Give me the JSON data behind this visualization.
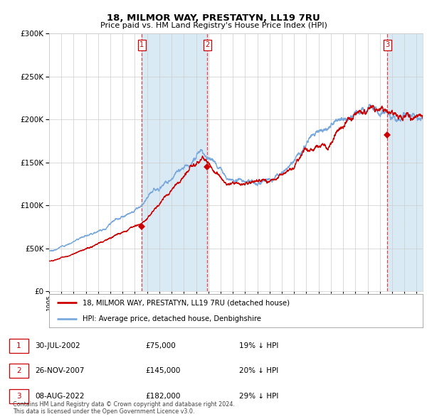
{
  "title": "18, MILMOR WAY, PRESTATYN, LL19 7RU",
  "subtitle": "Price paid vs. HM Land Registry's House Price Index (HPI)",
  "ylim": [
    0,
    300000
  ],
  "xlim_start": 1995.0,
  "xlim_end": 2025.5,
  "hpi_color": "#7aaadd",
  "price_color": "#cc0000",
  "shade_color": "#daeaf5",
  "transaction_dates": [
    2002.578,
    2007.906,
    2022.597
  ],
  "transaction_prices": [
    75000,
    145000,
    182000
  ],
  "transaction_labels": [
    "1",
    "2",
    "3"
  ],
  "legend_price_label": "18, MILMOR WAY, PRESTATYN, LL19 7RU (detached house)",
  "legend_hpi_label": "HPI: Average price, detached house, Denbighshire",
  "table_rows": [
    [
      "1",
      "30-JUL-2002",
      "£75,000",
      "19% ↓ HPI"
    ],
    [
      "2",
      "26-NOV-2007",
      "£145,000",
      "20% ↓ HPI"
    ],
    [
      "3",
      "08-AUG-2022",
      "£182,000",
      "29% ↓ HPI"
    ]
  ],
  "footer": "Contains HM Land Registry data © Crown copyright and database right 2024.\nThis data is licensed under the Open Government Licence v3.0.",
  "background_color": "#ffffff",
  "plot_bg_color": "#ffffff",
  "grid_color": "#cccccc"
}
